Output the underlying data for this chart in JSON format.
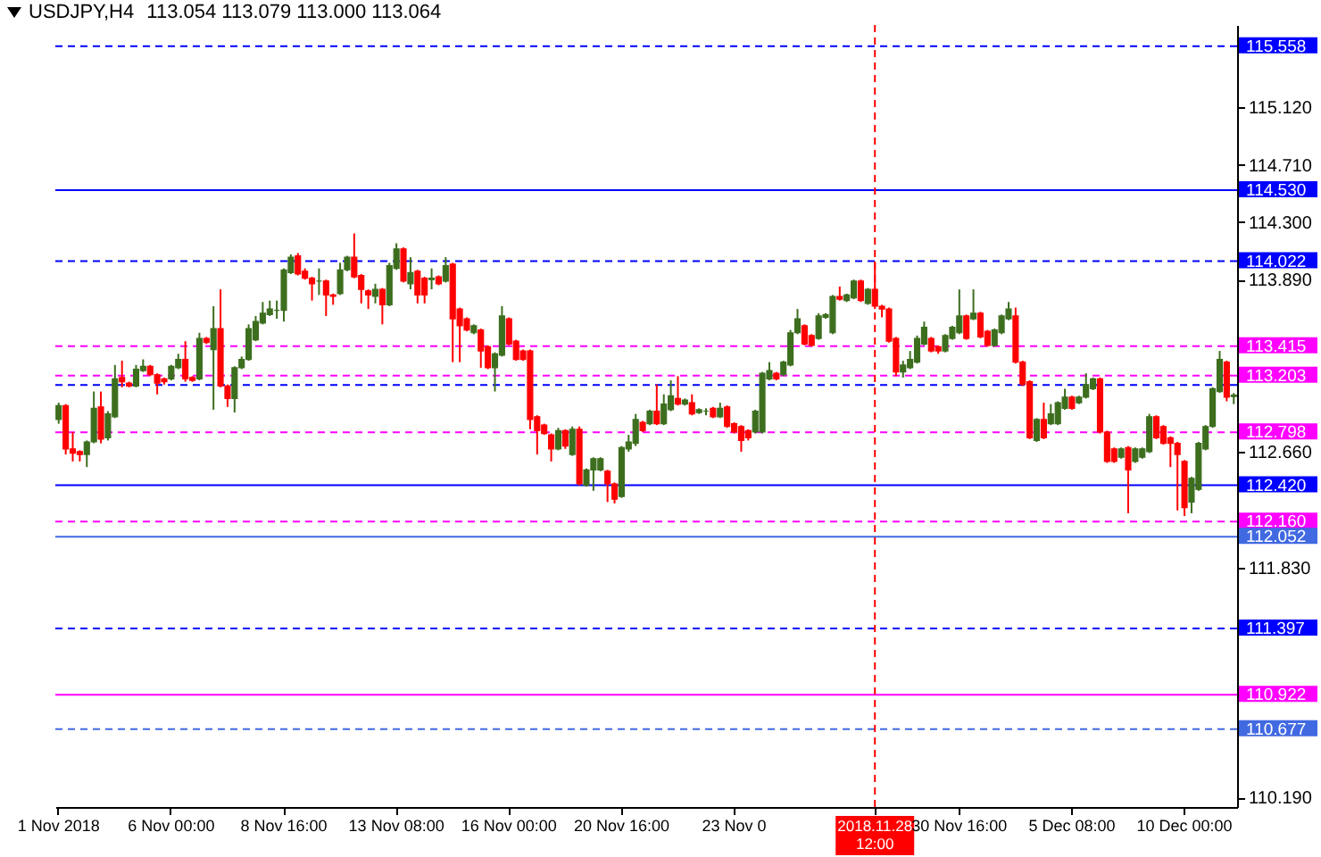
{
  "chart_data": {
    "type": "candlestick",
    "title": "USDJPY,H4",
    "subtitle": "113.054 113.079 113.000 113.064",
    "categories": [
      "1 Nov 2018",
      null,
      null,
      null,
      null,
      null,
      null,
      null,
      null,
      null,
      null,
      null,
      null,
      null,
      null,
      null,
      "6 Nov 00:00",
      null,
      null,
      null,
      null,
      null,
      null,
      null,
      null,
      null,
      null,
      null,
      null,
      null,
      null,
      null,
      "8 Nov 16:00",
      null,
      null,
      null,
      null,
      null,
      null,
      null,
      null,
      null,
      null,
      null,
      null,
      null,
      null,
      null,
      "13 Nov 08:00",
      null,
      null,
      null,
      null,
      null,
      null,
      null,
      null,
      null,
      null,
      null,
      null,
      null,
      null,
      null,
      "16 Nov 00:00",
      null,
      null,
      null,
      null,
      null,
      null,
      null,
      null,
      null,
      null,
      null,
      null,
      null,
      null,
      null,
      "20 Nov 16:00",
      null,
      null,
      null,
      null,
      null,
      null,
      null,
      null,
      null,
      null,
      null,
      null,
      null,
      null,
      null,
      "23 Nov 0",
      null,
      null,
      null,
      null,
      null,
      null,
      null,
      null,
      null,
      null,
      null,
      null,
      null,
      null,
      null,
      null,
      null,
      null,
      null,
      "2018.11.28 12:00",
      null,
      null,
      null,
      null,
      null,
      null,
      null,
      null,
      null,
      null,
      null,
      "30 Nov 16:00",
      null,
      null,
      null,
      null,
      null,
      null,
      null,
      null,
      null,
      null,
      null,
      null,
      null,
      null,
      null,
      "5 Dec 08:00",
      null,
      null,
      null,
      null,
      null,
      null,
      null,
      null,
      null,
      null,
      null,
      null,
      null,
      null,
      null,
      "10 Dec 00:00",
      null,
      null,
      null,
      null,
      null,
      null,
      null
    ],
    "ohlc": [
      [
        112.89,
        113.01,
        112.86,
        112.99
      ],
      [
        112.99,
        113.0,
        112.64,
        112.68
      ],
      [
        112.68,
        112.8,
        112.59,
        112.65
      ],
      [
        112.66,
        112.67,
        112.59,
        112.64
      ],
      [
        112.64,
        112.74,
        112.55,
        112.73
      ],
      [
        112.73,
        113.09,
        112.72,
        112.97
      ],
      [
        112.98,
        113.09,
        112.72,
        112.75
      ],
      [
        112.76,
        112.95,
        112.74,
        112.93
      ],
      [
        112.91,
        113.28,
        112.9,
        113.18
      ],
      [
        113.19,
        113.31,
        113.12,
        113.16
      ],
      [
        113.15,
        113.16,
        113.12,
        113.13
      ],
      [
        113.13,
        113.28,
        113.12,
        113.25
      ],
      [
        113.24,
        113.32,
        113.23,
        113.27
      ],
      [
        113.27,
        113.28,
        113.2,
        113.21
      ],
      [
        113.21,
        113.22,
        113.07,
        113.15
      ],
      [
        113.18,
        113.19,
        113.14,
        113.16
      ],
      [
        113.18,
        113.28,
        113.17,
        113.27
      ],
      [
        113.26,
        113.36,
        113.25,
        113.32
      ],
      [
        113.32,
        113.45,
        113.16,
        113.18
      ],
      [
        113.19,
        113.2,
        113.16,
        113.17
      ],
      [
        113.18,
        113.51,
        113.17,
        113.47
      ],
      [
        113.47,
        113.48,
        113.43,
        113.44
      ],
      [
        113.39,
        113.7,
        112.96,
        113.54
      ],
      [
        113.54,
        113.82,
        113.12,
        113.13
      ],
      [
        113.13,
        113.14,
        112.98,
        113.04
      ],
      [
        113.04,
        113.27,
        112.94,
        113.26
      ],
      [
        113.26,
        113.34,
        113.25,
        113.32
      ],
      [
        113.32,
        113.57,
        113.31,
        113.54
      ],
      [
        113.46,
        113.63,
        113.45,
        113.59
      ],
      [
        113.58,
        113.73,
        113.57,
        113.65
      ],
      [
        113.64,
        113.74,
        113.63,
        113.68
      ],
      [
        113.67,
        113.74,
        113.61,
        113.67
      ],
      [
        113.67,
        113.97,
        113.59,
        113.96
      ],
      [
        113.94,
        114.07,
        113.93,
        114.05
      ],
      [
        114.06,
        114.08,
        113.92,
        113.93
      ],
      [
        113.95,
        113.97,
        113.89,
        113.9
      ],
      [
        113.9,
        113.91,
        113.74,
        113.86
      ],
      [
        113.88,
        113.97,
        113.78,
        113.88
      ],
      [
        113.88,
        113.89,
        113.63,
        113.78
      ],
      [
        113.78,
        113.79,
        113.71,
        113.77
      ],
      [
        113.79,
        114.01,
        113.78,
        113.96
      ],
      [
        113.96,
        114.06,
        113.95,
        114.05
      ],
      [
        114.05,
        114.22,
        113.9,
        113.91
      ],
      [
        113.92,
        113.93,
        113.72,
        113.82
      ],
      [
        113.81,
        113.82,
        113.68,
        113.78
      ],
      [
        113.77,
        113.86,
        113.72,
        113.82
      ],
      [
        113.82,
        113.83,
        113.57,
        113.71
      ],
      [
        113.71,
        114.01,
        113.7,
        113.99
      ],
      [
        113.97,
        114.15,
        113.96,
        114.11
      ],
      [
        114.11,
        114.12,
        113.87,
        113.88
      ],
      [
        113.86,
        114.05,
        113.82,
        113.94
      ],
      [
        113.95,
        113.96,
        113.72,
        113.78
      ],
      [
        113.9,
        113.91,
        113.72,
        113.78
      ],
      [
        113.89,
        113.97,
        113.82,
        113.9
      ],
      [
        113.91,
        113.92,
        113.85,
        113.86
      ],
      [
        113.88,
        114.05,
        113.87,
        113.99
      ],
      [
        114.0,
        114.01,
        113.3,
        113.61
      ],
      [
        113.68,
        113.69,
        113.3,
        113.56
      ],
      [
        113.61,
        113.62,
        113.52,
        113.53
      ],
      [
        113.51,
        113.57,
        113.5,
        113.56
      ],
      [
        113.53,
        113.54,
        113.26,
        113.38
      ],
      [
        113.41,
        113.42,
        113.25,
        113.26
      ],
      [
        113.26,
        113.37,
        113.09,
        113.36
      ],
      [
        113.35,
        113.7,
        113.34,
        113.63
      ],
      [
        113.61,
        113.62,
        113.42,
        113.43
      ],
      [
        113.45,
        113.46,
        113.31,
        113.32
      ],
      [
        113.38,
        113.39,
        113.31,
        113.32
      ],
      [
        113.38,
        113.39,
        112.82,
        112.89
      ],
      [
        112.91,
        112.92,
        112.64,
        112.81
      ],
      [
        112.85,
        112.86,
        112.78,
        112.79
      ],
      [
        112.78,
        112.79,
        112.59,
        112.68
      ],
      [
        112.68,
        112.83,
        112.67,
        112.81
      ],
      [
        112.81,
        112.82,
        112.68,
        112.7
      ],
      [
        112.64,
        112.84,
        112.63,
        112.82
      ],
      [
        112.82,
        112.84,
        112.42,
        112.43
      ],
      [
        112.42,
        112.54,
        112.41,
        112.53
      ],
      [
        112.53,
        112.62,
        112.38,
        112.61
      ],
      [
        112.53,
        112.62,
        112.52,
        112.61
      ],
      [
        112.52,
        112.53,
        112.3,
        112.43
      ],
      [
        112.43,
        112.44,
        112.29,
        112.32
      ],
      [
        112.34,
        112.7,
        112.33,
        112.69
      ],
      [
        112.68,
        112.78,
        112.66,
        112.73
      ],
      [
        112.72,
        112.93,
        112.7,
        112.89
      ],
      [
        112.87,
        112.88,
        112.8,
        112.81
      ],
      [
        112.86,
        112.96,
        112.85,
        112.95
      ],
      [
        112.95,
        113.14,
        112.85,
        112.86
      ],
      [
        112.86,
        113.07,
        112.85,
        113.0
      ],
      [
        112.96,
        113.17,
        112.95,
        113.06
      ],
      [
        113.04,
        113.2,
        112.99,
        113.0
      ],
      [
        113.0,
        113.04,
        112.99,
        113.03
      ],
      [
        113.01,
        113.07,
        112.92,
        112.93
      ],
      [
        112.94,
        112.97,
        112.93,
        112.96
      ],
      [
        112.95,
        112.97,
        112.92,
        112.95
      ],
      [
        112.97,
        112.98,
        112.9,
        112.91
      ],
      [
        112.91,
        113.01,
        112.9,
        112.97
      ],
      [
        112.98,
        112.99,
        112.83,
        112.84
      ],
      [
        112.86,
        112.87,
        112.79,
        112.8
      ],
      [
        112.84,
        112.85,
        112.66,
        112.74
      ],
      [
        112.81,
        112.82,
        112.74,
        112.76
      ],
      [
        112.8,
        112.96,
        112.79,
        112.95
      ],
      [
        112.8,
        113.23,
        112.79,
        113.22
      ],
      [
        113.18,
        113.3,
        113.17,
        113.24
      ],
      [
        113.22,
        113.23,
        113.17,
        113.18
      ],
      [
        113.21,
        113.31,
        113.2,
        113.3
      ],
      [
        113.28,
        113.53,
        113.27,
        113.51
      ],
      [
        113.51,
        113.68,
        113.5,
        113.61
      ],
      [
        113.56,
        113.57,
        113.42,
        113.43
      ],
      [
        113.49,
        113.5,
        113.41,
        113.42
      ],
      [
        113.47,
        113.65,
        113.46,
        113.63
      ],
      [
        113.62,
        113.65,
        113.61,
        113.64
      ],
      [
        113.51,
        113.78,
        113.5,
        113.77
      ],
      [
        113.77,
        113.84,
        113.74,
        113.75
      ],
      [
        113.74,
        113.79,
        113.73,
        113.78
      ],
      [
        113.76,
        113.89,
        113.75,
        113.88
      ],
      [
        113.88,
        113.89,
        113.73,
        113.74
      ],
      [
        113.72,
        113.83,
        113.71,
        113.82
      ],
      [
        113.82,
        114.02,
        113.68,
        113.7
      ],
      [
        113.7,
        113.71,
        113.62,
        113.68
      ],
      [
        113.68,
        113.69,
        113.44,
        113.45
      ],
      [
        113.47,
        113.48,
        113.2,
        113.23
      ],
      [
        113.23,
        113.31,
        113.19,
        113.28
      ],
      [
        113.26,
        113.38,
        113.25,
        113.32
      ],
      [
        113.3,
        113.49,
        113.29,
        113.47
      ],
      [
        113.43,
        113.59,
        113.42,
        113.55
      ],
      [
        113.47,
        113.48,
        113.37,
        113.38
      ],
      [
        113.41,
        113.42,
        113.36,
        113.38
      ],
      [
        113.38,
        113.5,
        113.37,
        113.49
      ],
      [
        113.47,
        113.56,
        113.46,
        113.55
      ],
      [
        113.51,
        113.82,
        113.5,
        113.63
      ],
      [
        113.63,
        113.64,
        113.46,
        113.47
      ],
      [
        113.61,
        113.82,
        113.6,
        113.65
      ],
      [
        113.65,
        113.66,
        113.47,
        113.48
      ],
      [
        113.52,
        113.53,
        113.41,
        113.42
      ],
      [
        113.42,
        113.54,
        113.41,
        113.53
      ],
      [
        113.51,
        113.64,
        113.5,
        113.63
      ],
      [
        113.61,
        113.73,
        113.6,
        113.68
      ],
      [
        113.63,
        113.69,
        113.29,
        113.3
      ],
      [
        113.3,
        113.31,
        113.13,
        113.14
      ],
      [
        113.16,
        113.17,
        112.75,
        112.76
      ],
      [
        112.74,
        112.9,
        112.73,
        112.89
      ],
      [
        112.89,
        113.01,
        112.75,
        112.76
      ],
      [
        112.86,
        113.0,
        112.85,
        112.93
      ],
      [
        112.86,
        113.02,
        112.85,
        113.01
      ],
      [
        112.97,
        113.11,
        112.96,
        113.05
      ],
      [
        113.05,
        113.06,
        112.96,
        112.97
      ],
      [
        113.01,
        113.06,
        113.0,
        113.05
      ],
      [
        113.05,
        113.22,
        113.04,
        113.14
      ],
      [
        113.11,
        113.19,
        113.1,
        113.18
      ],
      [
        113.18,
        113.19,
        112.79,
        112.8
      ],
      [
        112.8,
        112.81,
        112.58,
        112.59
      ],
      [
        112.68,
        112.69,
        112.58,
        112.59
      ],
      [
        112.62,
        112.69,
        112.61,
        112.68
      ],
      [
        112.69,
        112.7,
        112.22,
        112.53
      ],
      [
        112.59,
        112.69,
        112.58,
        112.68
      ],
      [
        112.62,
        112.69,
        112.61,
        112.68
      ],
      [
        112.66,
        112.93,
        112.65,
        112.91
      ],
      [
        112.91,
        112.92,
        112.75,
        112.76
      ],
      [
        112.84,
        112.85,
        112.71,
        112.72
      ],
      [
        112.76,
        112.77,
        112.55,
        112.72
      ],
      [
        112.72,
        112.73,
        112.24,
        112.64
      ],
      [
        112.59,
        112.6,
        112.2,
        112.26
      ],
      [
        112.3,
        112.48,
        112.22,
        112.47
      ],
      [
        112.39,
        112.73,
        112.38,
        112.72
      ],
      [
        112.68,
        112.85,
        112.67,
        112.84
      ],
      [
        112.84,
        113.12,
        112.83,
        113.11
      ],
      [
        113.09,
        113.38,
        113.08,
        113.32
      ],
      [
        113.3,
        113.31,
        113.02,
        113.05
      ],
      [
        113.054,
        113.079,
        113.0,
        113.064
      ]
    ],
    "colors": [
      "#3c6e1e",
      "#ff0000",
      "#ff0000",
      "#ff0000",
      "#3c6e1e",
      "#3c6e1e",
      "#ff0000",
      "#3c6e1e",
      "#3c6e1e",
      "#ff0000",
      "#ff0000",
      "#3c6e1e",
      "#3c6e1e",
      "#ff0000",
      "#ff0000",
      "#ff0000",
      "#3c6e1e",
      "#3c6e1e",
      "#ff0000",
      "#ff0000",
      "#3c6e1e",
      "#ff0000",
      "#3c6e1e",
      "#ff0000",
      "#ff0000",
      "#3c6e1e",
      "#3c6e1e",
      "#3c6e1e",
      "#3c6e1e",
      "#3c6e1e",
      "#3c6e1e",
      "#3c6e1e",
      "#3c6e1e",
      "#3c6e1e",
      "#ff0000",
      "#ff0000",
      "#ff0000",
      "#3c6e1e",
      "#ff0000",
      "#ff0000",
      "#3c6e1e",
      "#3c6e1e",
      "#ff0000",
      "#ff0000",
      "#ff0000",
      "#3c6e1e",
      "#ff0000",
      "#3c6e1e",
      "#3c6e1e",
      "#ff0000",
      "#3c6e1e",
      "#ff0000",
      "#ff0000",
      "#3c6e1e",
      "#ff0000",
      "#3c6e1e",
      "#ff0000",
      "#ff0000",
      "#ff0000",
      "#3c6e1e",
      "#ff0000",
      "#ff0000",
      "#3c6e1e",
      "#3c6e1e",
      "#ff0000",
      "#ff0000",
      "#ff0000",
      "#ff0000",
      "#ff0000",
      "#ff0000",
      "#ff0000",
      "#3c6e1e",
      "#ff0000",
      "#3c6e1e",
      "#ff0000",
      "#3c6e1e",
      "#3c6e1e",
      "#3c6e1e",
      "#ff0000",
      "#ff0000",
      "#3c6e1e",
      "#3c6e1e",
      "#3c6e1e",
      "#ff0000",
      "#3c6e1e",
      "#ff0000",
      "#3c6e1e",
      "#3c6e1e",
      "#ff0000",
      "#3c6e1e",
      "#ff0000",
      "#3c6e1e",
      "#3c6e1e",
      "#ff0000",
      "#3c6e1e",
      "#ff0000",
      "#ff0000",
      "#ff0000",
      "#ff0000",
      "#3c6e1e",
      "#3c6e1e",
      "#3c6e1e",
      "#ff0000",
      "#3c6e1e",
      "#3c6e1e",
      "#3c6e1e",
      "#ff0000",
      "#ff0000",
      "#3c6e1e",
      "#3c6e1e",
      "#3c6e1e",
      "#ff0000",
      "#3c6e1e",
      "#3c6e1e",
      "#ff0000",
      "#3c6e1e",
      "#ff0000",
      "#ff0000",
      "#ff0000",
      "#ff0000",
      "#3c6e1e",
      "#3c6e1e",
      "#3c6e1e",
      "#3c6e1e",
      "#ff0000",
      "#ff0000",
      "#3c6e1e",
      "#3c6e1e",
      "#3c6e1e",
      "#ff0000",
      "#3c6e1e",
      "#ff0000",
      "#ff0000",
      "#3c6e1e",
      "#3c6e1e",
      "#3c6e1e",
      "#ff0000",
      "#ff0000",
      "#ff0000",
      "#3c6e1e",
      "#ff0000",
      "#3c6e1e",
      "#3c6e1e",
      "#3c6e1e",
      "#ff0000",
      "#3c6e1e",
      "#3c6e1e",
      "#3c6e1e",
      "#ff0000",
      "#ff0000",
      "#ff0000",
      "#3c6e1e",
      "#ff0000",
      "#3c6e1e",
      "#3c6e1e",
      "#3c6e1e",
      "#ff0000",
      "#ff0000",
      "#ff0000",
      "#ff0000",
      "#ff0000",
      "#3c6e1e",
      "#3c6e1e",
      "#3c6e1e",
      "#3c6e1e",
      "#3c6e1e",
      "#ff0000",
      "#3c6e1e"
    ],
    "ylim": [
      110.12,
      115.71
    ],
    "yticks": [
      {
        "value": 115.12,
        "label": "115.120"
      },
      {
        "value": 114.71,
        "label": "114.710"
      },
      {
        "value": 114.3,
        "label": "114.300"
      },
      {
        "value": 113.89,
        "label": "113.890"
      },
      {
        "value": 112.66,
        "label": "112.660"
      },
      {
        "value": 111.83,
        "label": "111.830"
      },
      {
        "value": 110.19,
        "label": "110.190"
      }
    ],
    "ref_lines": [
      {
        "axis": "y",
        "value": 115.558,
        "label": "115.558",
        "color": "#0000ff",
        "line_style": "dashed"
      },
      {
        "axis": "y",
        "value": 114.53,
        "label": "114.530",
        "color": "#0000ff",
        "line_style": "solid"
      },
      {
        "axis": "y",
        "value": 114.022,
        "label": "114.022",
        "color": "#0000ff",
        "line_style": "dashed"
      },
      {
        "axis": "y",
        "value": 113.415,
        "label": "113.415",
        "color": "#ff00ff",
        "line_style": "dashed"
      },
      {
        "axis": "y",
        "value": 113.203,
        "label": "113.203",
        "color": "#ff00ff",
        "line_style": "dashed"
      },
      {
        "axis": "y",
        "value": 113.137,
        "label": null,
        "color": "#0000ff",
        "line_style": "dashed"
      },
      {
        "axis": "y",
        "value": 112.798,
        "label": "112.798",
        "color": "#ff00ff",
        "line_style": "dashed"
      },
      {
        "axis": "y",
        "value": 112.42,
        "label": "112.420",
        "color": "#0000ff",
        "line_style": "solid"
      },
      {
        "axis": "y",
        "value": 112.16,
        "label": "112.160",
        "color": "#ff00ff",
        "line_style": "dashed"
      },
      {
        "axis": "y",
        "value": 112.052,
        "label": "112.052",
        "color": "#4169e1",
        "line_style": "solid"
      },
      {
        "axis": "y",
        "value": 111.397,
        "label": "111.397",
        "color": "#0000ff",
        "line_style": "dashed"
      },
      {
        "axis": "y",
        "value": 110.922,
        "label": "110.922",
        "color": "#ff00ff",
        "line_style": "solid"
      },
      {
        "axis": "y",
        "value": 110.677,
        "label": "110.677",
        "color": "#4169e1",
        "line_style": "dashed"
      },
      {
        "axis": "x",
        "value": "2018.11.28 12:00",
        "color": "#ff0000",
        "line_style": "dashed"
      }
    ],
    "grid": false
  }
}
